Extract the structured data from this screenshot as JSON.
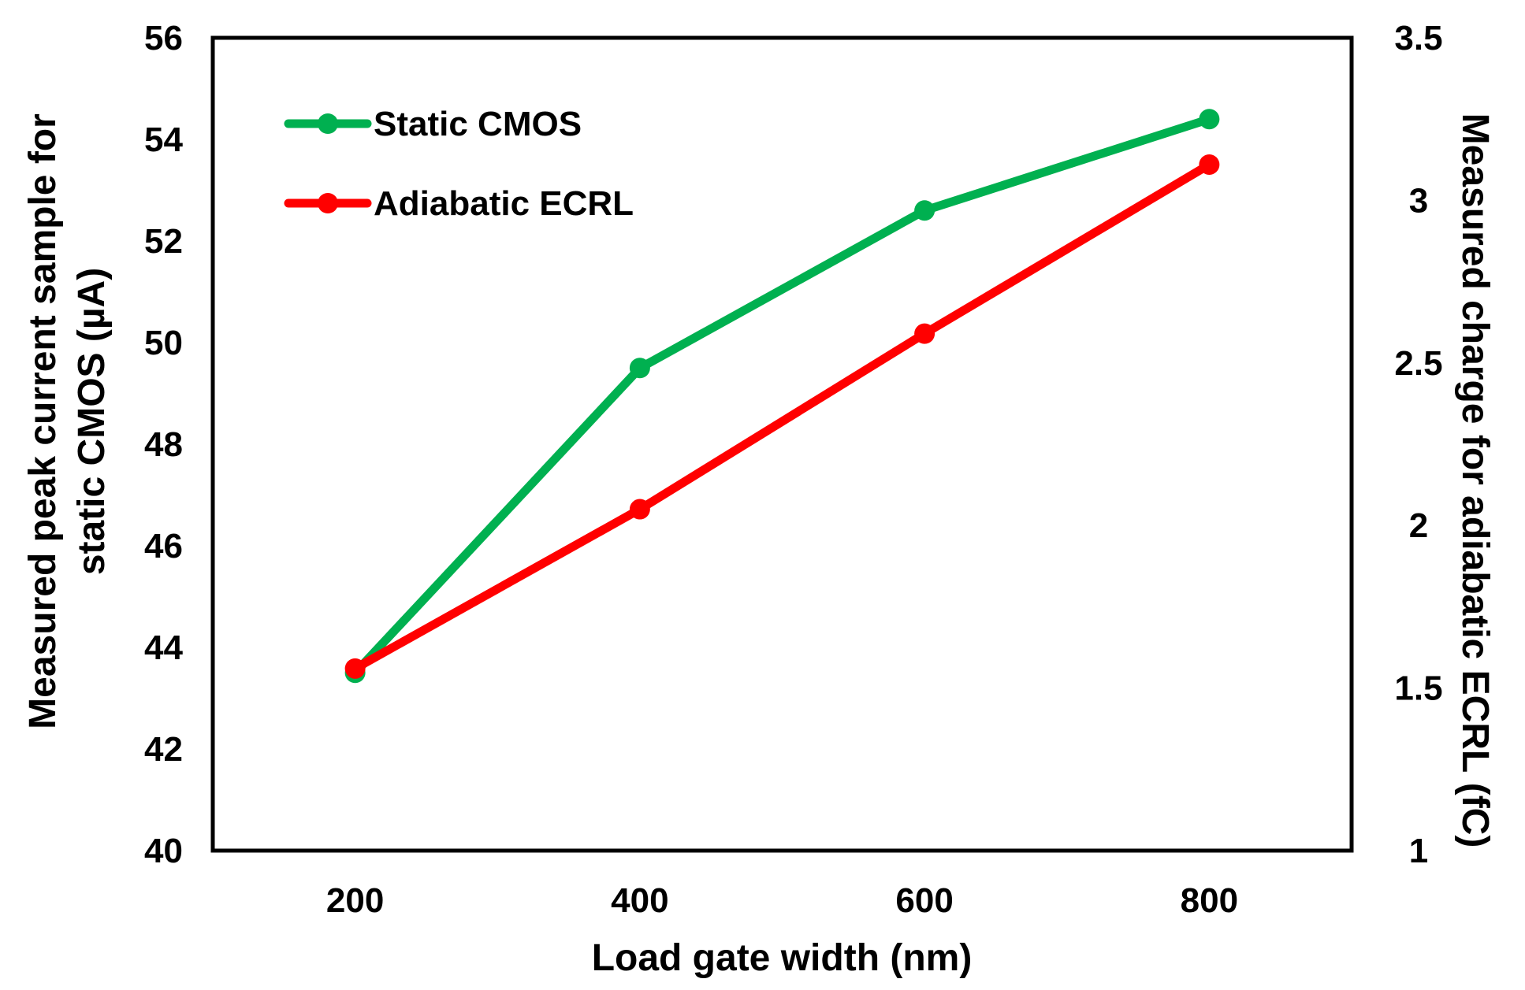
{
  "chart_data": {
    "type": "line",
    "title": "",
    "xlabel": "Load gate width (nm)",
    "ylabel_left_line1": "Measured peak current sample for",
    "ylabel_left_line2": "static CMOS  (µA)",
    "ylabel_right": "Measured charge for adiabatic ECRL (fC)",
    "x_ticks": [
      "200",
      "400",
      "600",
      "800"
    ],
    "x": [
      200,
      400,
      600,
      800
    ],
    "xlim": [
      100,
      900
    ],
    "ylim_left": [
      40,
      56
    ],
    "ylim_right": [
      1,
      3.5
    ],
    "y_left_ticks": [
      "40",
      "42",
      "44",
      "46",
      "48",
      "50",
      "52",
      "54",
      "56"
    ],
    "y_right_ticks": [
      "1",
      "1.5",
      "2",
      "2.5",
      "3",
      "3.5"
    ],
    "grid": false,
    "legend_position": "top-left",
    "series": [
      {
        "name": "Static CMOS",
        "axis": "left",
        "color": "#00b050",
        "values": [
          43.5,
          49.5,
          52.6,
          54.4
        ]
      },
      {
        "name": "Adiabatic ECRL",
        "axis": "right",
        "color": "#ff0000",
        "values": [
          1.56,
          2.05,
          2.59,
          3.11
        ]
      }
    ]
  }
}
